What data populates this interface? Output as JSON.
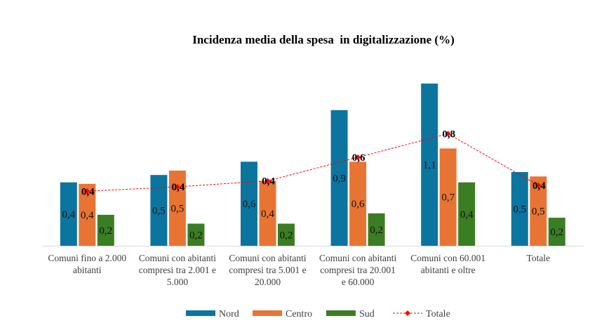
{
  "chart_data": {
    "type": "bar",
    "title": "Incidenza media della spesa  in digitalizzazione (%)",
    "xlabel": "",
    "ylabel": "",
    "ylim": [
      0,
      1.2
    ],
    "grid": false,
    "legend_position": "bottom",
    "categories": [
      [
        "Comuni fino a 2.000",
        "abitanti"
      ],
      [
        "Comuni con abitanti",
        "compresi tra 2.001 e",
        "5.000"
      ],
      [
        "Comuni con abitanti",
        "compresi tra 5.001 e",
        "20.000"
      ],
      [
        "Comuni con abitanti",
        "compresi tra 20.001",
        "e 60.000"
      ],
      [
        "Comuni con 60.001",
        "abitanti e oltre"
      ],
      [
        "Totale"
      ]
    ],
    "series": [
      {
        "name": "Nord",
        "type": "bar",
        "color": "#0b75a0",
        "values": [
          0.43,
          0.48,
          0.57,
          0.92,
          1.1,
          0.5
        ],
        "labels": [
          "0,4",
          "0,5",
          "0,6",
          "0,9",
          "1,1",
          "0,5"
        ]
      },
      {
        "name": "Centro",
        "type": "bar",
        "color": "#e87434",
        "values": [
          0.42,
          0.51,
          0.44,
          0.57,
          0.66,
          0.47
        ],
        "labels": [
          "0,4",
          "0,5",
          "0,4",
          "0,6",
          "0,7",
          "0,5"
        ]
      },
      {
        "name": "Sud",
        "type": "bar",
        "color": "#3b7d23",
        "values": [
          0.21,
          0.15,
          0.15,
          0.22,
          0.43,
          0.19
        ],
        "labels": [
          "0,2",
          "0,2",
          "0,2",
          "0,2",
          "0,4",
          "0,2"
        ]
      },
      {
        "name": "Totale",
        "type": "line",
        "color": "#ff0000",
        "dashed": true,
        "marker": "diamond",
        "values": [
          0.37,
          0.4,
          0.44,
          0.6,
          0.76,
          0.41
        ],
        "labels": [
          "0,4",
          "0,4",
          "0,4",
          "0,6",
          "0,8",
          "0,4"
        ]
      }
    ]
  }
}
